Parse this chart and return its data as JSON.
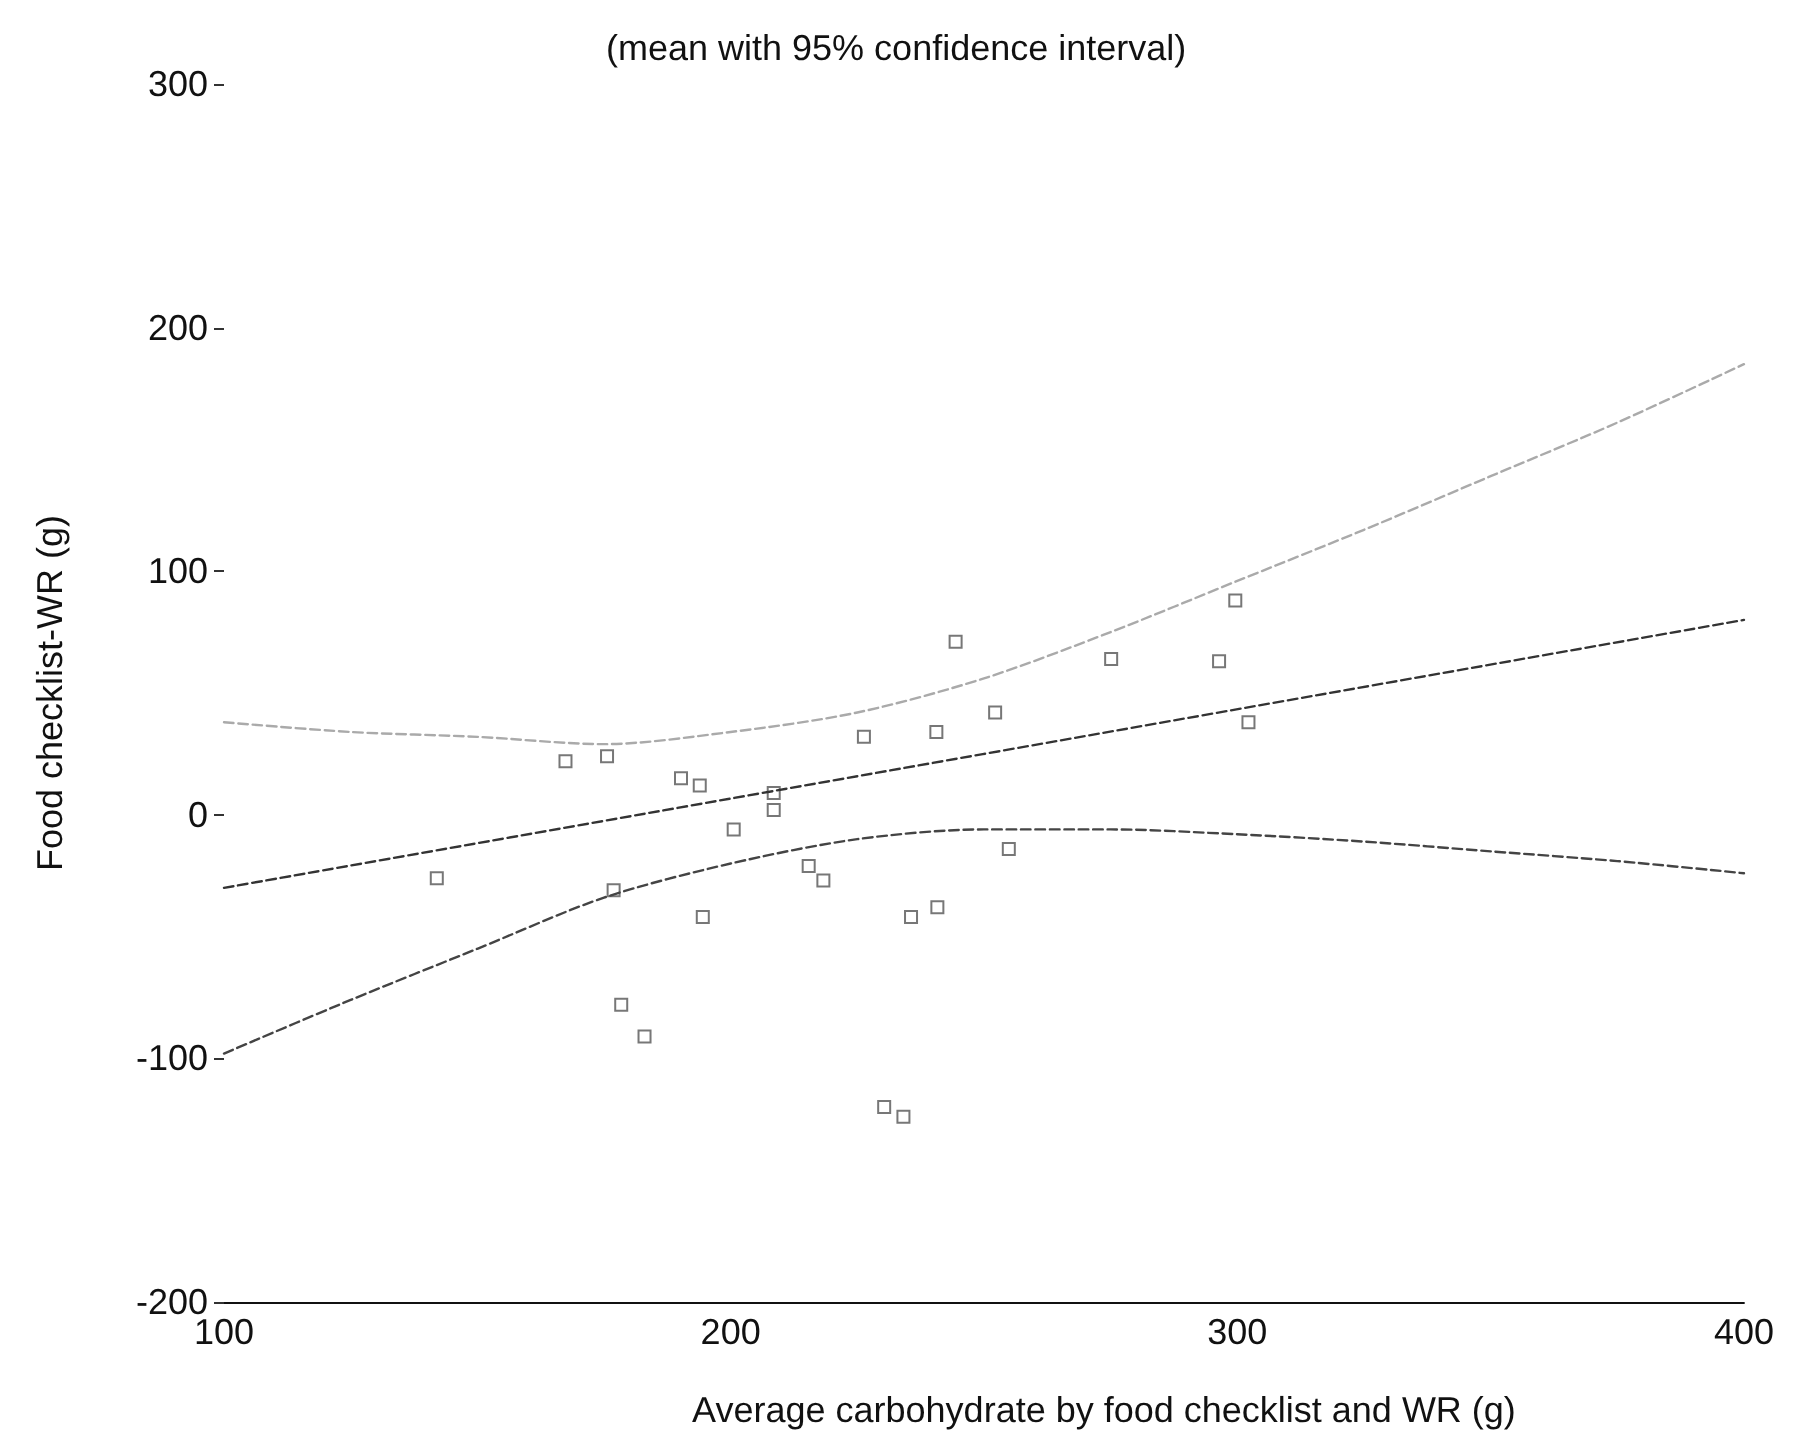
{
  "chart_data": {
    "type": "scatter",
    "title": "(mean with 95% confidence interval)",
    "xlabel": "Average carbohydrate by food checklist and WR (g)",
    "ylabel": "Food checklist-WR (g)",
    "xlim": [
      100,
      400
    ],
    "xticks": [
      100,
      200,
      300,
      400
    ],
    "ylim": [
      -200,
      300
    ],
    "yticks": [
      -200,
      -100,
      0,
      100,
      200,
      300
    ],
    "grid": false,
    "marker": "square",
    "series": [
      {
        "color": "#555555",
        "x": [
          142,
          167.4,
          175.6,
          176.9,
          178.4,
          183,
          190.2,
          193.9,
          194.5,
          200.6,
          208.5,
          208.5,
          215.4,
          218.3,
          226.3,
          230.3,
          234.1,
          235.6,
          240.6,
          240.8,
          244.4,
          252.2,
          254.9,
          275.1,
          296.4,
          299.6,
          302.2
        ],
        "values": [
          -26,
          22,
          24,
          -31,
          -78,
          -91,
          15,
          12,
          -42,
          -6,
          9,
          2,
          -21,
          -27,
          32,
          -120,
          -124,
          -42,
          34,
          -38,
          71,
          42,
          -14,
          64,
          63,
          88,
          38
        ]
      },
      {
        "type": "line",
        "color": "#333333",
        "line_style": "dashed",
        "marker": "none",
        "x": [
          100,
          400
        ],
        "values": [
          -30,
          80
        ]
      },
      {
        "type": "line",
        "color": "#444444",
        "line_style": "dashed",
        "marker": "none",
        "x": [
          100,
          125,
          150,
          175,
          200,
          225,
          250,
          275,
          300,
          325,
          350,
          375,
          400
        ],
        "values": [
          -98,
          -76,
          -55,
          -34,
          -20,
          -10,
          -6,
          -6,
          -8,
          -11,
          -15,
          -19,
          -24
        ]
      },
      {
        "type": "line",
        "color": "#aaaaaa",
        "line_style": "dashed",
        "marker": "none",
        "x": [
          100,
          125,
          150,
          175,
          200,
          225,
          250,
          275,
          300,
          325,
          350,
          375,
          400
        ],
        "values": [
          38,
          34,
          32,
          29,
          34,
          42,
          56,
          75,
          96,
          117,
          139,
          161,
          185
        ]
      }
    ]
  }
}
